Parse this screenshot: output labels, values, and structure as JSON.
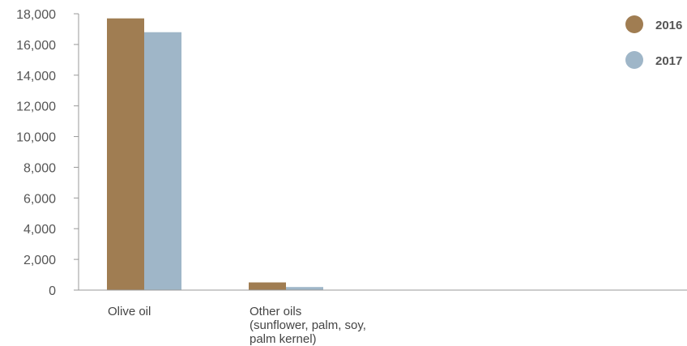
{
  "chart_data": {
    "type": "bar",
    "categories": [
      [
        "Olive oil"
      ],
      [
        "Other oils",
        "(sunflower, palm, soy,",
        "palm kernel)"
      ]
    ],
    "series": [
      {
        "name": "2016",
        "color": "#a07d52",
        "values": [
          17700,
          500
        ]
      },
      {
        "name": "2017",
        "color": "#9fb6c8",
        "values": [
          16800,
          200
        ]
      }
    ],
    "ylim": [
      0,
      18000
    ],
    "yticks": [
      0,
      2000,
      4000,
      6000,
      8000,
      10000,
      12000,
      14000,
      16000,
      18000
    ],
    "ytick_labels": [
      "0",
      "2,000",
      "4,000",
      "6,000",
      "8,000",
      "10,000",
      "12,000",
      "14,000",
      "16,000",
      "18,000"
    ],
    "title": "",
    "xlabel": "",
    "ylabel": "",
    "grid": false,
    "legend_position": "top-right"
  }
}
